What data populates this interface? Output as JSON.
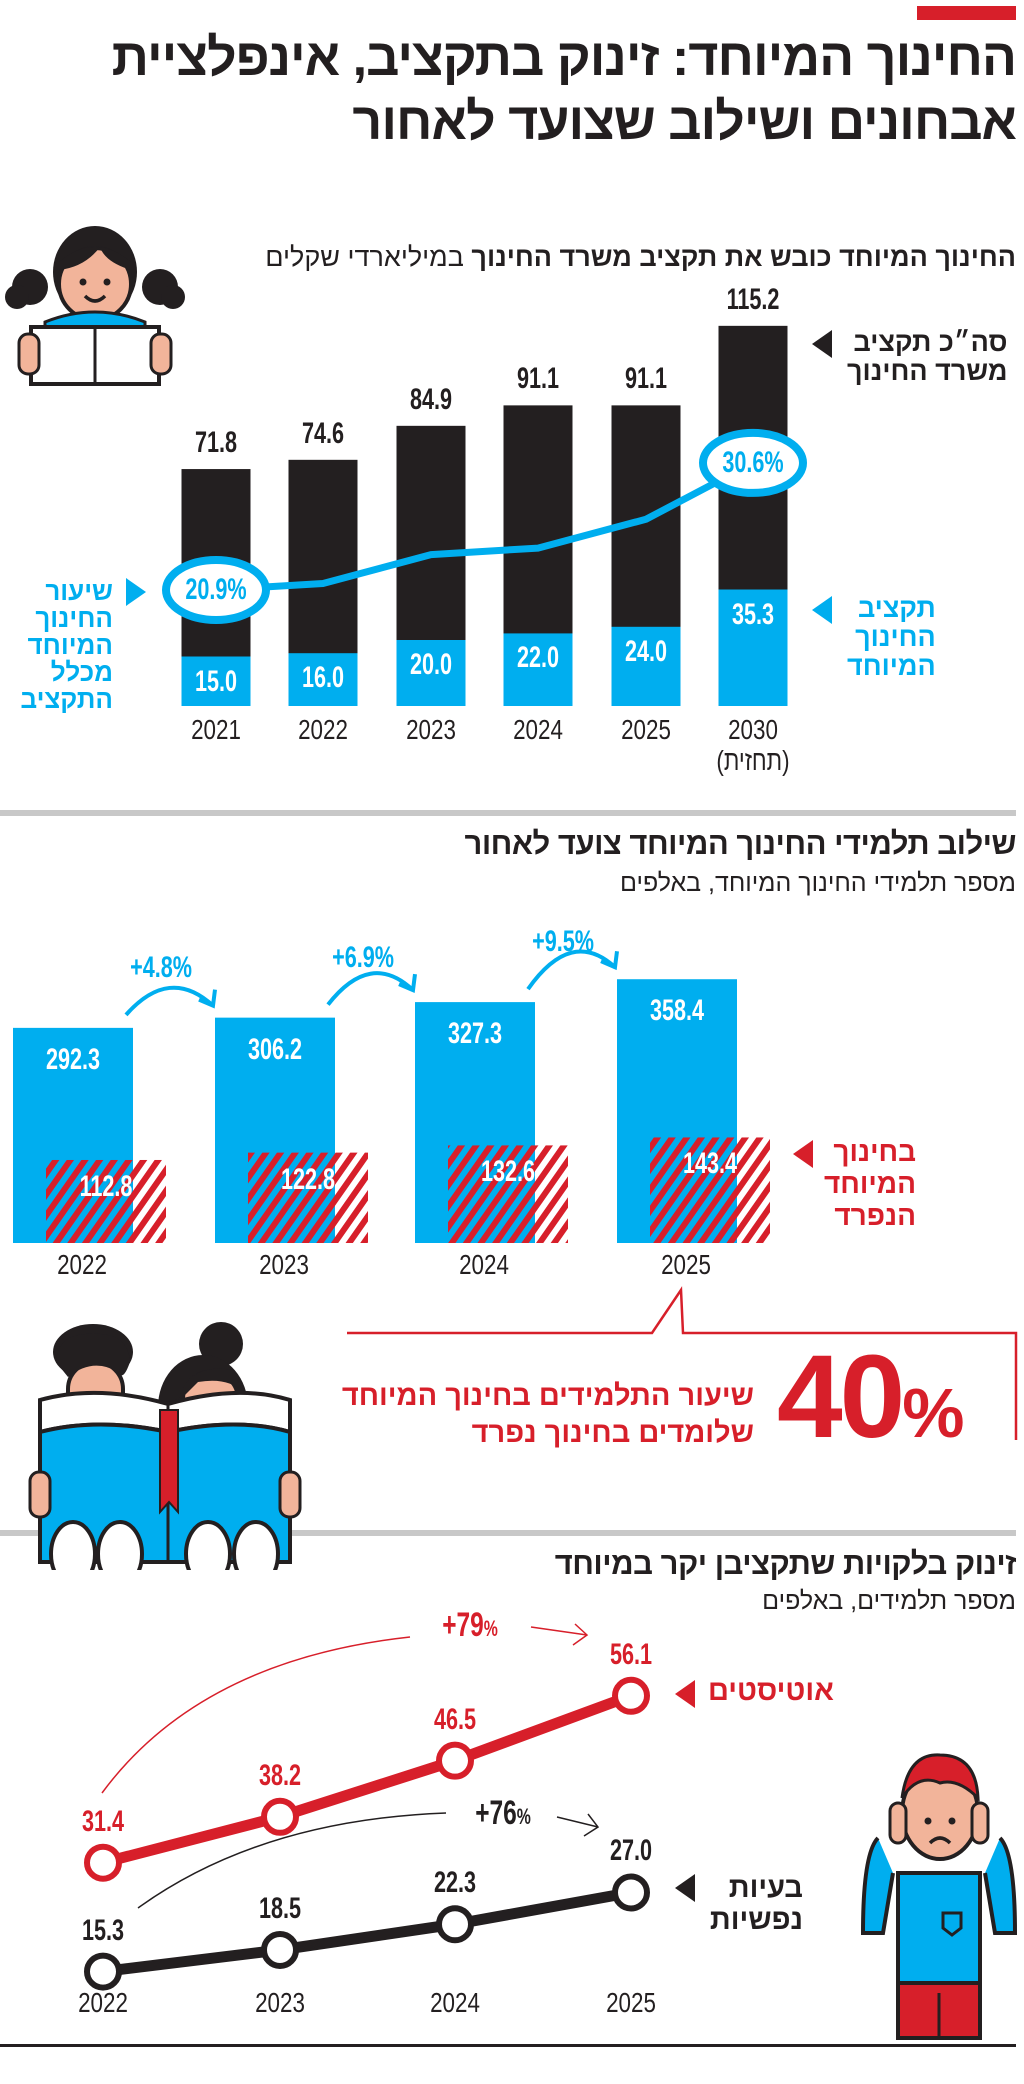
{
  "colors": {
    "blue": "#00aeef",
    "black": "#231f20",
    "red": "#d71f2a",
    "divider": "#c8c8c8"
  },
  "header": {
    "title_line1": "החינוך המיוחד: זינוק בתקציב, אינפלציית",
    "title_line2": "אבחונים ושילוב שצועד לאחור"
  },
  "section1": {
    "title_bold": "החינוך המיוחד כובש את תקציב משרד החינוך",
    "title_unit": "במיליארדי שקלים",
    "legend_total": [
      "סה״כ תקציב",
      "משרד החינוך"
    ],
    "legend_special": [
      "תקציב",
      "החינוך",
      "המיוחד"
    ],
    "legend_share": [
      "שיעור",
      "החינוך",
      "המיוחד",
      "מכלל",
      "התקציב"
    ],
    "forecast_note": "(תחזית)",
    "illustration": "girl-reading-book"
  },
  "section2": {
    "title": "שילוב תלמידי החינוך המיוחד צועד לאחור",
    "subtitle": "מספר תלמידי החינוך המיוחד, באלפים",
    "legend_separate": [
      "בחינוך",
      "המיוחד",
      "הנפרד"
    ],
    "callout_value": "40",
    "callout_pct": "%",
    "callout_text_line1": "שיעור התלמידים בחינוך המיוחד",
    "callout_text_line2": "שלומדים בחינוך נפרד",
    "illustration": "two-kids-reading-book"
  },
  "section3": {
    "title": "זינוק בלקויות שתקציבן יקר במיוחד",
    "subtitle": "מספר תלמידים, באלפים",
    "illustration": "boy-covering-ears"
  },
  "chart_data": [
    {
      "type": "bar",
      "stacked": true,
      "categories": [
        "2021",
        "2022",
        "2023",
        "2024",
        "2025",
        "2030"
      ],
      "series": [
        {
          "name": "סה״כ תקציב משרד החינוך",
          "values": [
            71.8,
            74.6,
            84.9,
            91.1,
            91.1,
            115.2
          ],
          "labels": [
            "71.8",
            "74.6",
            "84.9",
            "91.1",
            "91.1",
            "115.2"
          ],
          "color": "#231f20"
        },
        {
          "name": "תקציב החינוך המיוחד",
          "values": [
            15.0,
            16.0,
            20.0,
            22.0,
            24.0,
            35.3
          ],
          "labels": [
            "15.0",
            "16.0",
            "20.0",
            "22.0",
            "24.0",
            "35.3"
          ],
          "color": "#00aeef"
        }
      ],
      "line_series": {
        "name": "שיעור החינוך המיוחד מכלל התקציב",
        "unit": "%",
        "values": [
          20.9,
          21.4,
          23.6,
          24.1,
          26.3,
          30.6
        ],
        "labels": {
          "0": "20.9%",
          "5": "30.6%"
        },
        "color": "#00aeef"
      },
      "grid": false
    },
    {
      "type": "bar",
      "categories": [
        "2022",
        "2023",
        "2024",
        "2025"
      ],
      "series": [
        {
          "name": "",
          "values": [
            292.3,
            306.2,
            327.3,
            358.4
          ],
          "labels": [
            "292.3",
            "306.2",
            "327.3",
            "358.4"
          ],
          "color": "#00aeef"
        },
        {
          "name": "בחינוך המיוחד הנפרד",
          "values": [
            112.8,
            122.8,
            132.6,
            143.4
          ],
          "labels": [
            "112.8",
            "122.8",
            "132.6",
            "143.4"
          ],
          "color": "#d71f2a",
          "pattern": "diagonal-stripes"
        }
      ],
      "growth_labels": [
        "+4.8%",
        "+6.9%",
        "+9.5%"
      ],
      "grid": false
    },
    {
      "type": "line",
      "x": [
        "2022",
        "2023",
        "2024",
        "2025"
      ],
      "series": [
        {
          "name": "אוטיסטים",
          "values": [
            31.4,
            38.2,
            46.5,
            56.1
          ],
          "labels": [
            "31.4",
            "38.2",
            "46.5",
            "56.1"
          ],
          "color": "#d71f2a",
          "change_label": "+79"
        },
        {
          "name": "בעיות נפשיות",
          "values": [
            15.3,
            18.5,
            22.3,
            27.0
          ],
          "labels": [
            "15.3",
            "18.5",
            "22.3",
            "27.0"
          ],
          "color": "#231f20",
          "change_label": "+76"
        }
      ],
      "change_pct_symbol": "%",
      "grid": false
    }
  ]
}
